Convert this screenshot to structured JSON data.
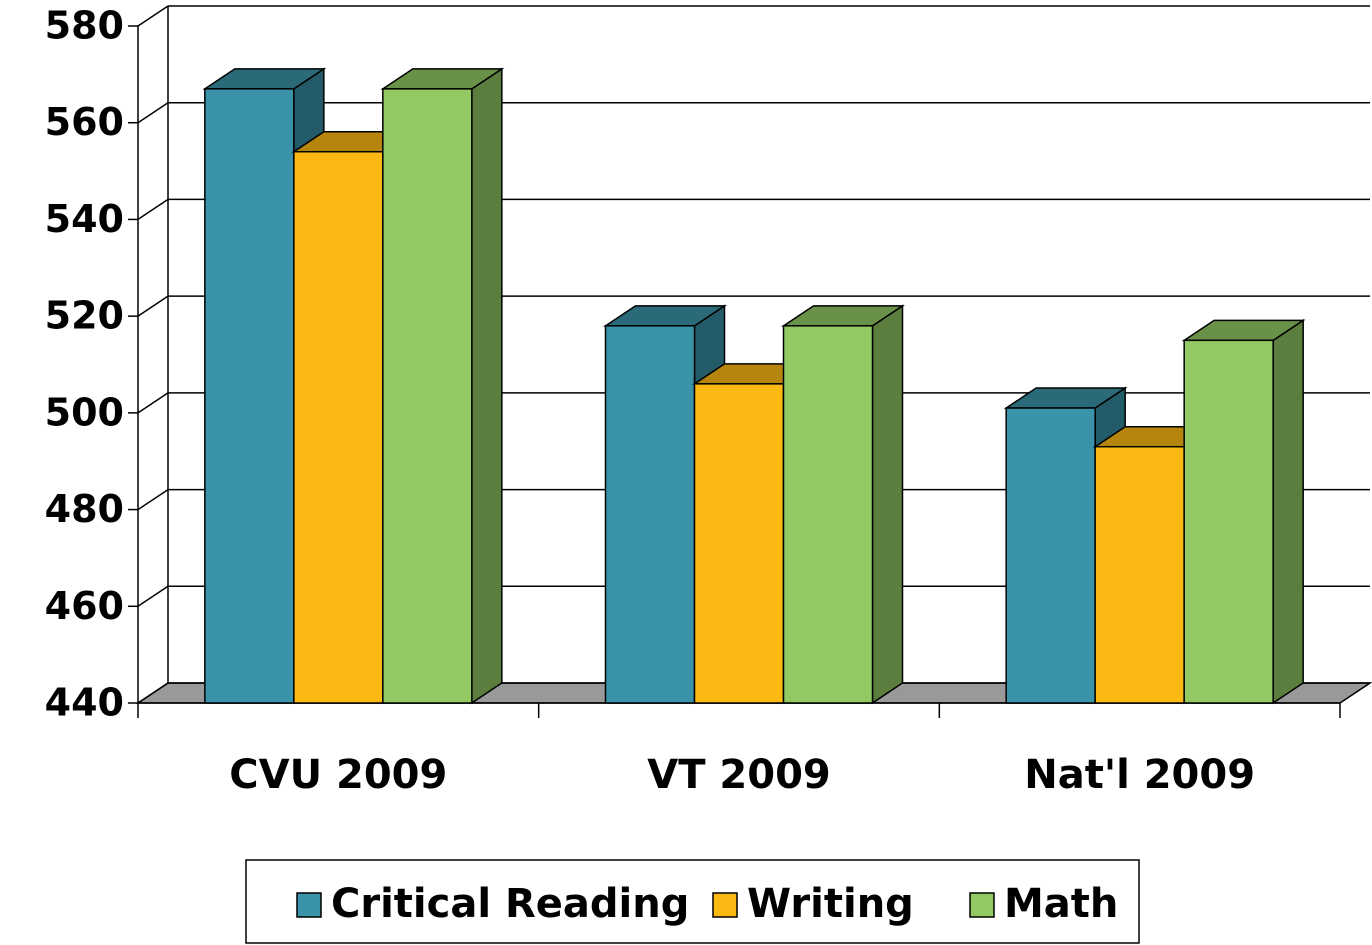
{
  "chart_data": {
    "type": "bar3d",
    "categories": [
      "CVU 2009",
      "VT 2009",
      "Nat'l 2009"
    ],
    "series": [
      {
        "name": "Critical Reading",
        "color": "#3a93a8",
        "values": [
          567,
          518,
          501
        ]
      },
      {
        "name": "Writing",
        "color": "#fdb913",
        "values": [
          554,
          506,
          493
        ]
      },
      {
        "name": "Math",
        "color": "#92c962",
        "values": [
          567,
          518,
          515
        ]
      }
    ],
    "ylim": [
      440,
      580
    ],
    "yticks": [
      440,
      460,
      480,
      500,
      520,
      540,
      560,
      580
    ],
    "grid": true
  }
}
